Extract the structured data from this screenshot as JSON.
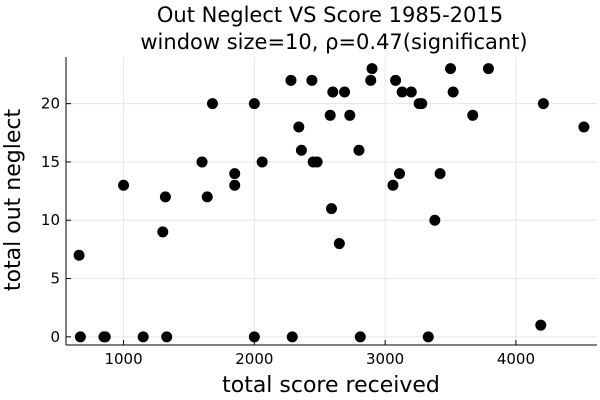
{
  "chart_data": {
    "type": "scatter",
    "title_lines": [
      "Out Neglect VS Score 1985-2015",
      "window size=10, ρ=0.47(significant)"
    ],
    "xlabel": "total score received",
    "ylabel": "total out neglect",
    "xlim": [
      560,
      4620
    ],
    "ylim": [
      -0.7,
      24
    ],
    "xticks": [
      1000,
      2000,
      3000,
      4000
    ],
    "yticks": [
      0,
      5,
      10,
      15,
      20
    ],
    "grid": true,
    "legend": "none",
    "point_color": "#000000",
    "points": [
      [
        660,
        7
      ],
      [
        670,
        0
      ],
      [
        850,
        0
      ],
      [
        860,
        0
      ],
      [
        1000,
        13
      ],
      [
        1150,
        0
      ],
      [
        1300,
        9
      ],
      [
        1320,
        12
      ],
      [
        1330,
        0
      ],
      [
        1600,
        15
      ],
      [
        1640,
        12
      ],
      [
        1680,
        20
      ],
      [
        1850,
        14
      ],
      [
        1850,
        13
      ],
      [
        2000,
        20
      ],
      [
        2000,
        0
      ],
      [
        2060,
        15
      ],
      [
        2280,
        22
      ],
      [
        2290,
        0
      ],
      [
        2340,
        18
      ],
      [
        2360,
        16
      ],
      [
        2440,
        22
      ],
      [
        2450,
        15
      ],
      [
        2480,
        15
      ],
      [
        2580,
        19
      ],
      [
        2590,
        11
      ],
      [
        2600,
        21
      ],
      [
        2650,
        8
      ],
      [
        2690,
        21
      ],
      [
        2730,
        19
      ],
      [
        2800,
        16
      ],
      [
        2810,
        0
      ],
      [
        2890,
        22
      ],
      [
        2900,
        23
      ],
      [
        3060,
        13
      ],
      [
        3080,
        22
      ],
      [
        3110,
        14
      ],
      [
        3130,
        21
      ],
      [
        3200,
        21
      ],
      [
        3260,
        20
      ],
      [
        3280,
        20
      ],
      [
        3330,
        0
      ],
      [
        3380,
        10
      ],
      [
        3420,
        14
      ],
      [
        3500,
        23
      ],
      [
        3520,
        21
      ],
      [
        3670,
        19
      ],
      [
        3790,
        23
      ],
      [
        4190,
        1
      ],
      [
        4210,
        20
      ],
      [
        4520,
        18
      ]
    ]
  }
}
